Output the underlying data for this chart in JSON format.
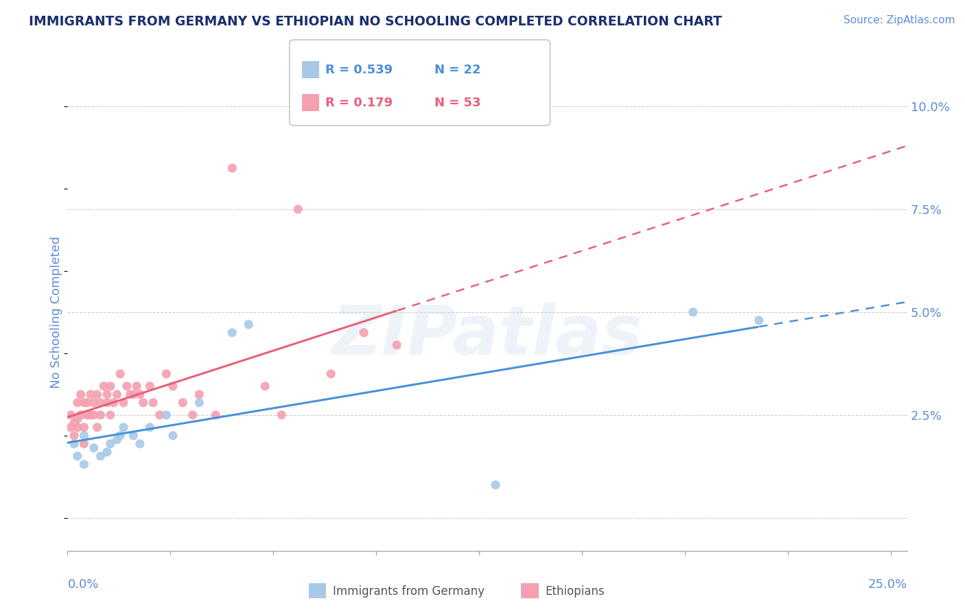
{
  "title": "IMMIGRANTS FROM GERMANY VS ETHIOPIAN NO SCHOOLING COMPLETED CORRELATION CHART",
  "source": "Source: ZipAtlas.com",
  "ylabel": "No Schooling Completed",
  "legend_blue_r": "R = 0.539",
  "legend_blue_n": "N = 22",
  "legend_pink_r": "R = 0.179",
  "legend_pink_n": "N = 53",
  "legend_label_blue": "Immigrants from Germany",
  "legend_label_pink": "Ethiopians",
  "ytick_values": [
    0.0,
    0.025,
    0.05,
    0.075,
    0.1
  ],
  "ytick_labels": [
    "",
    "2.5%",
    "5.0%",
    "7.5%",
    "10.0%"
  ],
  "xtick_values": [
    0.0,
    0.03125,
    0.0625,
    0.09375,
    0.125,
    0.15625,
    0.1875,
    0.21875,
    0.25
  ],
  "xlim": [
    0.0,
    0.255
  ],
  "ylim": [
    -0.008,
    0.108
  ],
  "color_blue_scatter": "#a8c8e8",
  "color_pink_scatter": "#f4a0b0",
  "color_blue_line": "#4a90d9",
  "color_pink_line": "#e8607a",
  "color_title": "#1a2f6e",
  "color_axis_label": "#5b8dd9",
  "color_source": "#5b8dd9",
  "watermark": "ZIPatlas",
  "blue_x": [
    0.002,
    0.003,
    0.005,
    0.005,
    0.008,
    0.01,
    0.012,
    0.013,
    0.015,
    0.016,
    0.017,
    0.02,
    0.022,
    0.025,
    0.03,
    0.032,
    0.04,
    0.05,
    0.055,
    0.13,
    0.19,
    0.21
  ],
  "blue_y": [
    0.018,
    0.015,
    0.02,
    0.013,
    0.017,
    0.015,
    0.016,
    0.018,
    0.019,
    0.02,
    0.022,
    0.02,
    0.018,
    0.022,
    0.025,
    0.02,
    0.028,
    0.045,
    0.047,
    0.008,
    0.05,
    0.048
  ],
  "pink_x": [
    0.001,
    0.001,
    0.002,
    0.002,
    0.003,
    0.003,
    0.003,
    0.004,
    0.004,
    0.005,
    0.005,
    0.005,
    0.006,
    0.006,
    0.007,
    0.007,
    0.008,
    0.008,
    0.009,
    0.009,
    0.01,
    0.01,
    0.011,
    0.012,
    0.012,
    0.013,
    0.013,
    0.014,
    0.015,
    0.016,
    0.017,
    0.018,
    0.019,
    0.02,
    0.021,
    0.022,
    0.023,
    0.025,
    0.026,
    0.028,
    0.03,
    0.032,
    0.035,
    0.038,
    0.04,
    0.045,
    0.05,
    0.06,
    0.065,
    0.07,
    0.08,
    0.09,
    0.1
  ],
  "pink_y": [
    0.025,
    0.022,
    0.02,
    0.023,
    0.028,
    0.022,
    0.024,
    0.025,
    0.03,
    0.018,
    0.022,
    0.028,
    0.025,
    0.028,
    0.03,
    0.025,
    0.025,
    0.028,
    0.03,
    0.022,
    0.025,
    0.028,
    0.032,
    0.028,
    0.03,
    0.025,
    0.032,
    0.028,
    0.03,
    0.035,
    0.028,
    0.032,
    0.03,
    0.03,
    0.032,
    0.03,
    0.028,
    0.032,
    0.028,
    0.025,
    0.035,
    0.032,
    0.028,
    0.025,
    0.03,
    0.025,
    0.085,
    0.032,
    0.025,
    0.075,
    0.035,
    0.045,
    0.042
  ]
}
